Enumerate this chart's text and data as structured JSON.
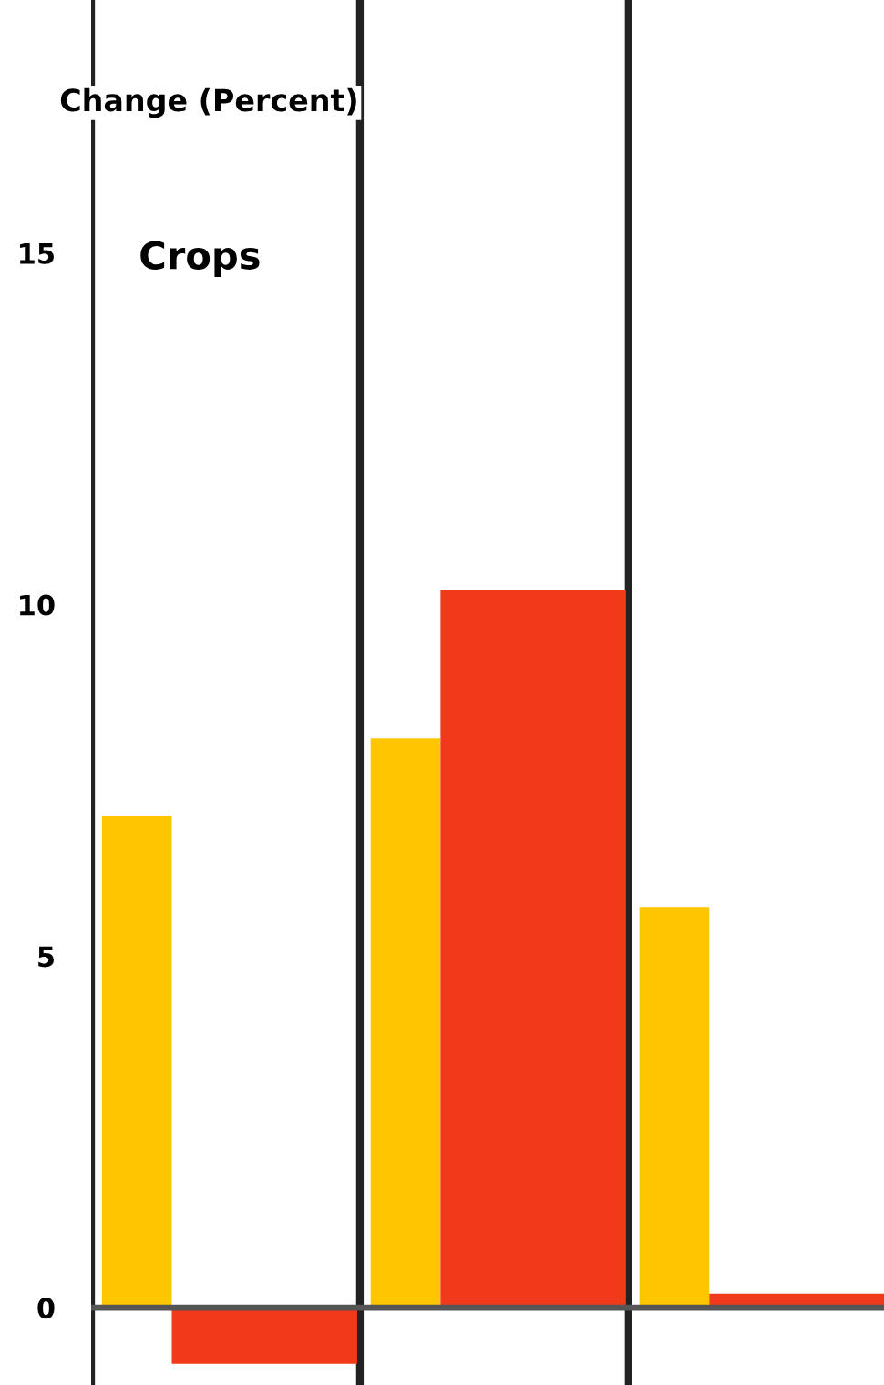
{
  "chart_data": {
    "type": "bar",
    "title": "Crops",
    "ylabel": "Change (Percent)",
    "categories": [
      null,
      null,
      null
    ],
    "series": [
      {
        "color": "#ffc600",
        "values": [
          7.0,
          8.1,
          5.7
        ]
      },
      {
        "color": "#f03a1a",
        "values": [
          -0.8,
          10.2,
          0.2
        ]
      }
    ],
    "ylim": [
      -1.1,
      18.6
    ],
    "yticks": [
      0,
      5,
      10,
      15
    ],
    "ref_lines": [
      {
        "axis": "y",
        "value": 0,
        "color": "#555555"
      }
    ],
    "grid": false,
    "legend": false
  }
}
